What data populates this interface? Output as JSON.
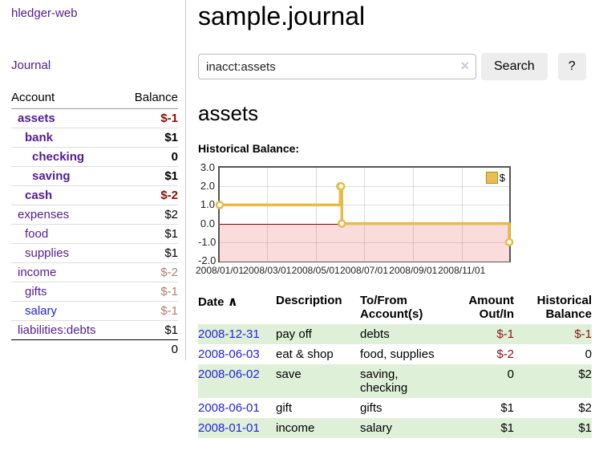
{
  "app": {
    "title": "hledger-web"
  },
  "colors": {
    "link_purple": "#531b93",
    "link_blue": "#2222dd",
    "negative_strong": "#8b0e00",
    "negative_muted": "#b97a70",
    "row_stripe_green": "#dff0d8",
    "chart_line_gold": "#e6bc46",
    "chart_negative_fill": "#fbdcdc",
    "chart_zero_line": "#8b0000"
  },
  "sidebar": {
    "journal_label": "Journal",
    "accounts_table": {
      "headers": [
        "Account",
        "Balance"
      ],
      "rows": [
        {
          "account": "assets",
          "balance": "$-1",
          "depth": 1,
          "in_scope": true,
          "tone": "negative",
          "link": "purple"
        },
        {
          "account": "bank",
          "balance": "$1",
          "depth": 2,
          "in_scope": true,
          "tone": "normal",
          "link": "purple"
        },
        {
          "account": "checking",
          "balance": "0",
          "depth": 3,
          "in_scope": true,
          "tone": "normal",
          "link": "purple"
        },
        {
          "account": "saving",
          "balance": "$1",
          "depth": 3,
          "in_scope": true,
          "tone": "normal",
          "link": "purple"
        },
        {
          "account": "cash",
          "balance": "$-2",
          "depth": 2,
          "in_scope": true,
          "tone": "negative",
          "link": "purple"
        },
        {
          "account": "expenses",
          "balance": "$2",
          "depth": 1,
          "in_scope": false,
          "tone": "normal",
          "link": "purple"
        },
        {
          "account": "food",
          "balance": "$1",
          "depth": 2,
          "in_scope": false,
          "tone": "normal",
          "link": "purple"
        },
        {
          "account": "supplies",
          "balance": "$1",
          "depth": 2,
          "in_scope": false,
          "tone": "normal",
          "link": "purple"
        },
        {
          "account": "income",
          "balance": "$-2",
          "depth": 1,
          "in_scope": false,
          "tone": "negative-muted",
          "link": "purple"
        },
        {
          "account": "gifts",
          "balance": "$-1",
          "depth": 2,
          "in_scope": false,
          "tone": "negative-muted",
          "link": "purple"
        },
        {
          "account": "salary",
          "balance": "$-1",
          "depth": 2,
          "in_scope": false,
          "tone": "negative-muted",
          "link": "blue"
        },
        {
          "account": "liabilities:debts",
          "balance": "$1",
          "depth": 1,
          "in_scope": false,
          "tone": "normal",
          "link": "purple"
        }
      ],
      "total": "0"
    }
  },
  "main": {
    "title": "sample.journal",
    "search": {
      "value": "inacct:assets",
      "clear_icon": "×",
      "button_label": "Search",
      "help_label": "?"
    },
    "account_heading": "assets",
    "chart_label": "Historical Balance:"
  },
  "chart_data": {
    "type": "line",
    "style": "step",
    "title": "Historical Balance",
    "grid": true,
    "legend_position": "top-right",
    "legend": [
      {
        "label": "$",
        "color": "#e9c04d"
      }
    ],
    "ylim": [
      -2,
      3
    ],
    "y_ticks": [
      "3.0",
      "2.0",
      "1.0",
      "0.0",
      "-1.0",
      "-2.0"
    ],
    "y_tick_values": [
      3,
      2,
      1,
      0,
      -1,
      -2
    ],
    "x_range_days": 365,
    "x_ticks": [
      {
        "label": "2008/01/01",
        "day": 0
      },
      {
        "label": "2008/03/01",
        "day": 60
      },
      {
        "label": "2008/05/01",
        "day": 121
      },
      {
        "label": "2008/07/01",
        "day": 182
      },
      {
        "label": "2008/09/01",
        "day": 244
      },
      {
        "label": "2008/11/01",
        "day": 305
      }
    ],
    "series": [
      {
        "name": "$",
        "points": [
          {
            "date": "2008-01-01",
            "day": 0,
            "value": 1
          },
          {
            "date": "2008-06-01",
            "day": 152,
            "value": 2
          },
          {
            "date": "2008-06-02",
            "day": 153,
            "value": 2
          },
          {
            "date": "2008-06-03",
            "day": 154,
            "value": 0
          },
          {
            "date": "2008-12-31",
            "day": 365,
            "value": -1
          }
        ]
      }
    ]
  },
  "register_table": {
    "headers": [
      "Date",
      "Description",
      "To/From Account(s)",
      "Amount Out/In",
      "Historical Balance"
    ],
    "sort_icon": "∧",
    "rows": [
      {
        "date": "2008-12-31",
        "description": "pay off",
        "accounts": "debts",
        "amount": "$-1",
        "balance": "$-1"
      },
      {
        "date": "2008-06-03",
        "description": "eat & shop",
        "accounts": "food, supplies",
        "amount": "$-2",
        "balance": "0"
      },
      {
        "date": "2008-06-02",
        "description": "save",
        "accounts": "saving, checking",
        "amount": "0",
        "balance": "$2"
      },
      {
        "date": "2008-06-01",
        "description": "gift",
        "accounts": "gifts",
        "amount": "$1",
        "balance": "$2"
      },
      {
        "date": "2008-01-01",
        "description": "income",
        "accounts": "salary",
        "amount": "$1",
        "balance": "$1"
      }
    ]
  }
}
